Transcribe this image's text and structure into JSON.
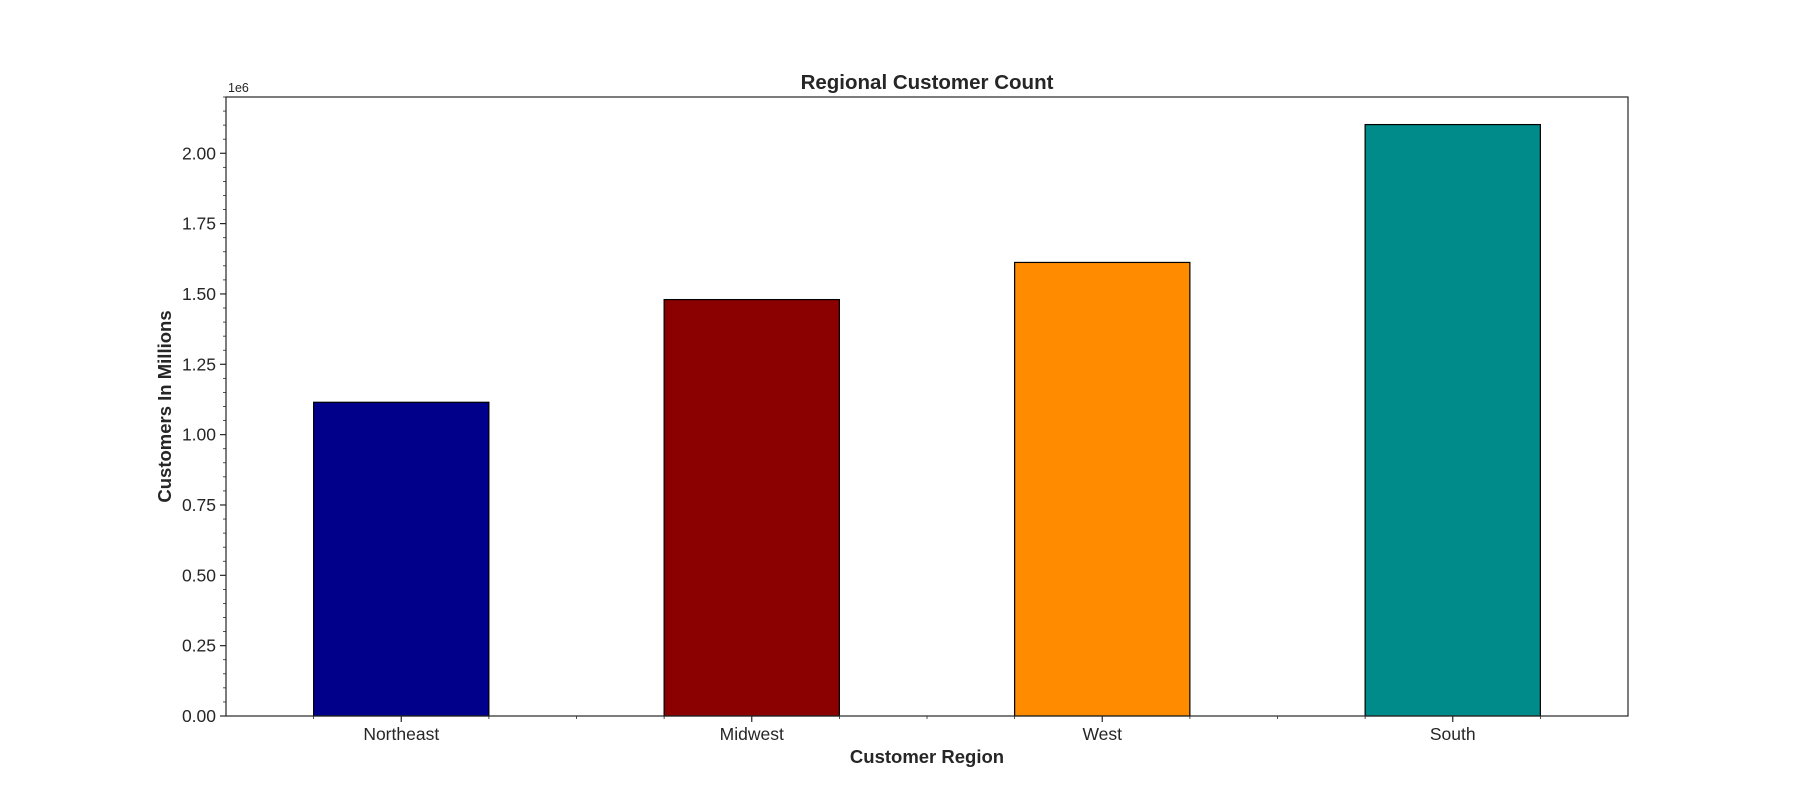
{
  "chart_data": {
    "type": "bar",
    "title": "Regional Customer Count",
    "xlabel": "Customer Region",
    "ylabel": "Customers In Millions",
    "offset_text": "1e6",
    "categories": [
      "Northeast",
      "Midwest",
      "West",
      "South"
    ],
    "values": [
      1115000,
      1480000,
      1612000,
      2102000
    ],
    "colors": [
      "#00008b",
      "#8b0000",
      "#ff8c00",
      "#008b8b"
    ],
    "bar_edge_color": "#000000",
    "ylim": [
      0,
      2200000
    ],
    "yticks": [
      0,
      250000,
      500000,
      750000,
      1000000,
      1250000,
      1500000,
      1750000,
      2000000
    ],
    "ytick_labels": [
      "0.00",
      "0.25",
      "0.50",
      "0.75",
      "1.00",
      "1.25",
      "1.50",
      "1.75",
      "2.00"
    ],
    "grid": false,
    "legend": "none"
  }
}
